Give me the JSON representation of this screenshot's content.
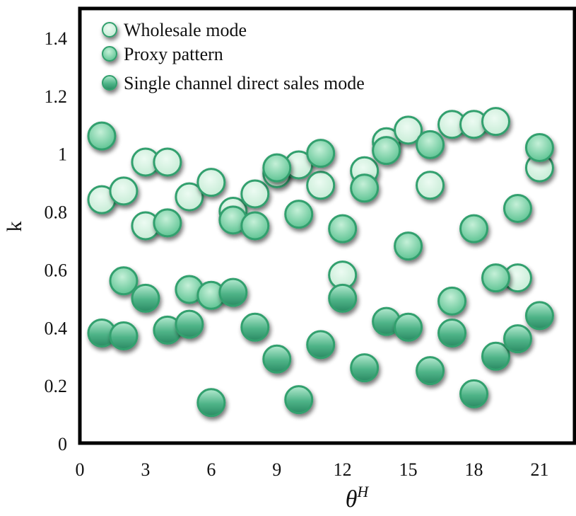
{
  "colors": {
    "wholesale_fill": "#d2f2df",
    "proxy_fill": "#8fdcb1",
    "direct_fill": "#3aa37a",
    "stroke": "#32a06e",
    "axis": "#000000"
  },
  "chart_data": {
    "type": "scatter",
    "title": "",
    "xlabel": "θ",
    "xlabel_sup": "H",
    "ylabel": "k",
    "xlim": [
      0,
      22.6
    ],
    "ylim": [
      0,
      1.5
    ],
    "xticks": [
      0,
      3,
      6,
      9,
      12,
      15,
      18,
      21
    ],
    "xtick_labels": [
      "0",
      "3",
      "6",
      "9",
      "12",
      "15",
      "18",
      "21"
    ],
    "yticks": [
      0,
      0.2,
      0.4,
      0.6,
      0.8,
      1.0,
      1.2,
      1.4
    ],
    "ytick_labels": [
      "0",
      "0.2",
      "0.4",
      "0.6",
      "0.8",
      "1",
      "1.2",
      "1.4"
    ],
    "grid": false,
    "legend_position": "top-left",
    "series": [
      {
        "name": "Wholesale mode",
        "points": [
          [
            1,
            0.84
          ],
          [
            2,
            0.87
          ],
          [
            3,
            0.75
          ],
          [
            3,
            0.97
          ],
          [
            4,
            0.97
          ],
          [
            5,
            0.85
          ],
          [
            6,
            0.9
          ],
          [
            7,
            0.8
          ],
          [
            8,
            0.86
          ],
          [
            9,
            0.93
          ],
          [
            10,
            0.96
          ],
          [
            11,
            0.89
          ],
          [
            12,
            0.58
          ],
          [
            13,
            0.94
          ],
          [
            14,
            1.04
          ],
          [
            15,
            1.08
          ],
          [
            16,
            0.89
          ],
          [
            17,
            1.1
          ],
          [
            18,
            1.1
          ],
          [
            19,
            1.11
          ],
          [
            20,
            0.57
          ],
          [
            21,
            0.95
          ]
        ]
      },
      {
        "name": "Proxy pattern",
        "points": [
          [
            1,
            1.06
          ],
          [
            2,
            0.56
          ],
          [
            4,
            0.76
          ],
          [
            5,
            0.53
          ],
          [
            6,
            0.51
          ],
          [
            7,
            0.77
          ],
          [
            8,
            0.75
          ],
          [
            9,
            0.95
          ],
          [
            10,
            0.79
          ],
          [
            11,
            1.0
          ],
          [
            12,
            0.74
          ],
          [
            13,
            0.88
          ],
          [
            14,
            1.01
          ],
          [
            15,
            0.68
          ],
          [
            16,
            1.03
          ],
          [
            17,
            0.49
          ],
          [
            18,
            0.74
          ],
          [
            19,
            0.57
          ],
          [
            20,
            0.81
          ],
          [
            21,
            1.02
          ]
        ]
      },
      {
        "name": "Single channel direct sales mode",
        "points": [
          [
            1,
            0.38
          ],
          [
            2,
            0.37
          ],
          [
            3,
            0.5
          ],
          [
            4,
            0.39
          ],
          [
            5,
            0.41
          ],
          [
            6,
            0.14
          ],
          [
            7,
            0.52
          ],
          [
            8,
            0.4
          ],
          [
            9,
            0.29
          ],
          [
            10,
            0.15
          ],
          [
            11,
            0.34
          ],
          [
            12,
            0.5
          ],
          [
            13,
            0.26
          ],
          [
            14,
            0.42
          ],
          [
            15,
            0.4
          ],
          [
            16,
            0.25
          ],
          [
            17,
            0.38
          ],
          [
            18,
            0.17
          ],
          [
            19,
            0.3
          ],
          [
            20,
            0.36
          ],
          [
            21,
            0.44
          ]
        ]
      }
    ]
  }
}
